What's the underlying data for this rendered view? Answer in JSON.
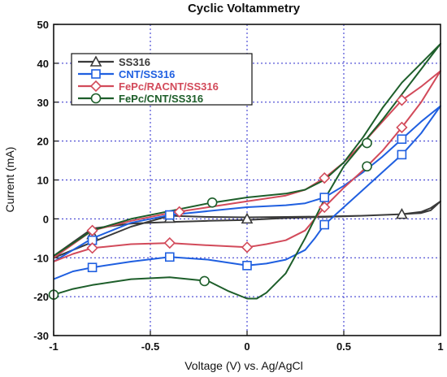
{
  "chart_data": {
    "type": "line",
    "title": "Cyclic Voltammetry",
    "xlabel": "Voltage (V) vs. Ag/AgCl",
    "ylabel": "Current (mA)",
    "xlim": [
      -1,
      1
    ],
    "ylim": [
      -30,
      50
    ],
    "xticks": [
      -1,
      -0.5,
      0,
      0.5,
      1
    ],
    "xtick_labels": [
      "-1",
      "-0.5",
      "0",
      "0.5",
      "1"
    ],
    "yticks": [
      -30,
      -20,
      -10,
      0,
      10,
      20,
      30,
      40,
      50
    ],
    "ytick_labels": [
      "-30",
      "-20",
      "-10",
      "0",
      "10",
      "20",
      "30",
      "40",
      "50"
    ],
    "grid": true,
    "legend_position": "top-left",
    "series": [
      {
        "name": "SS316",
        "color": "#3a3a3a",
        "marker": "triangle",
        "x": [
          -1,
          -0.8,
          -0.6,
          -0.4,
          -0.2,
          0,
          0.2,
          0.4,
          0.6,
          0.8,
          0.9,
          0.95,
          1,
          0.95,
          0.9,
          0.8,
          0.6,
          0.4,
          0.2,
          0,
          -0.2,
          -0.4,
          -0.6,
          -0.8,
          -1
        ],
        "y": [
          -10,
          -6,
          -2,
          0.8,
          0.5,
          0.4,
          0.5,
          0.6,
          0.8,
          1.2,
          1.8,
          2.8,
          4.5,
          2.2,
          1.5,
          1.2,
          0.8,
          0.5,
          0.2,
          -0.3,
          -0.5,
          -0.8,
          -1.2,
          -2.5,
          -9.5
        ],
        "marker_x": [
          -0.8,
          -0.4,
          0,
          0.8
        ],
        "marker_y": [
          -4,
          0.2,
          0,
          1.2
        ]
      },
      {
        "name": "CNT/SS316",
        "color": "#1f5fe0",
        "marker": "square",
        "x": [
          -1,
          -0.9,
          -0.8,
          -0.6,
          -0.4,
          -0.2,
          0,
          0.1,
          0.2,
          0.3,
          0.35,
          0.4,
          0.5,
          0.6,
          0.7,
          0.8,
          0.9,
          1,
          0.9,
          0.8,
          0.7,
          0.6,
          0.5,
          0.4,
          0.3,
          0.2,
          0,
          -0.2,
          -0.4,
          -0.6,
          -0.8,
          -1
        ],
        "y": [
          -15.5,
          -13.5,
          -12.5,
          -11,
          -9.8,
          -10.5,
          -12,
          -11.5,
          -10.5,
          -8,
          -5,
          -1.5,
          3,
          7.5,
          12,
          16.5,
          22,
          29,
          25,
          20.5,
          16,
          12,
          8.5,
          5.5,
          4,
          3.5,
          3,
          2,
          1,
          -1,
          -5,
          -11
        ],
        "marker_x": [
          -0.8,
          -0.4,
          0,
          0.4,
          0.8,
          -0.8,
          -0.4,
          0.4,
          0.8
        ],
        "marker_y": [
          -12.5,
          -9.8,
          -12,
          5.5,
          20.5,
          -5.5,
          1,
          -1.5,
          16.5
        ]
      },
      {
        "name": "FePc/RACNT/SS316",
        "color": "#d24a5a",
        "marker": "diamond",
        "x": [
          -1,
          -0.9,
          -0.8,
          -0.6,
          -0.4,
          -0.2,
          0,
          0.1,
          0.2,
          0.3,
          0.35,
          0.4,
          0.5,
          0.6,
          0.7,
          0.8,
          0.9,
          1,
          0.9,
          0.8,
          0.7,
          0.6,
          0.5,
          0.4,
          0.3,
          0.2,
          0,
          -0.2,
          -0.4,
          -0.6,
          -0.8,
          -1
        ],
        "y": [
          -11,
          -9,
          -7.5,
          -6.5,
          -6.2,
          -6.8,
          -7.3,
          -6.5,
          -5.5,
          -3,
          0,
          3,
          8,
          12.5,
          17.5,
          23.5,
          30,
          38,
          34,
          30.5,
          25,
          19.5,
          14.5,
          10.5,
          7.5,
          6,
          4.5,
          3,
          1.5,
          -0.5,
          -3,
          -10
        ],
        "marker_x": [
          -0.8,
          -0.4,
          0,
          0.4,
          0.8,
          -0.8,
          -0.35,
          0.4,
          0.8
        ],
        "marker_y": [
          -7.5,
          -6.2,
          -7.3,
          3,
          23.5,
          -3,
          1.8,
          10.5,
          30.5
        ]
      },
      {
        "name": "FePc/CNT/SS316",
        "color": "#1d5e2a",
        "marker": "circle",
        "x": [
          -1,
          -0.9,
          -0.8,
          -0.6,
          -0.4,
          -0.2,
          -0.1,
          0,
          0.05,
          0.1,
          0.2,
          0.3,
          0.4,
          0.5,
          0.6,
          0.7,
          0.8,
          0.9,
          1,
          0.9,
          0.8,
          0.7,
          0.6,
          0.5,
          0.4,
          0.3,
          0.2,
          0,
          -0.2,
          -0.4,
          -0.6,
          -0.8,
          -1
        ],
        "y": [
          -19.5,
          -18,
          -17,
          -15.5,
          -15,
          -16,
          -18.5,
          -20.5,
          -20.5,
          -19,
          -14,
          -5,
          5,
          13.5,
          19.5,
          25.5,
          32,
          38.5,
          45,
          40,
          35,
          28.5,
          21,
          14.5,
          10,
          7.5,
          6.5,
          5.5,
          4,
          2,
          0,
          -3,
          -9.5
        ],
        "marker_x": [
          -1,
          -0.22,
          0.62,
          -0.18,
          0.62
        ],
        "marker_y": [
          -19.5,
          -16,
          13.5,
          4.2,
          19.5
        ]
      }
    ]
  }
}
